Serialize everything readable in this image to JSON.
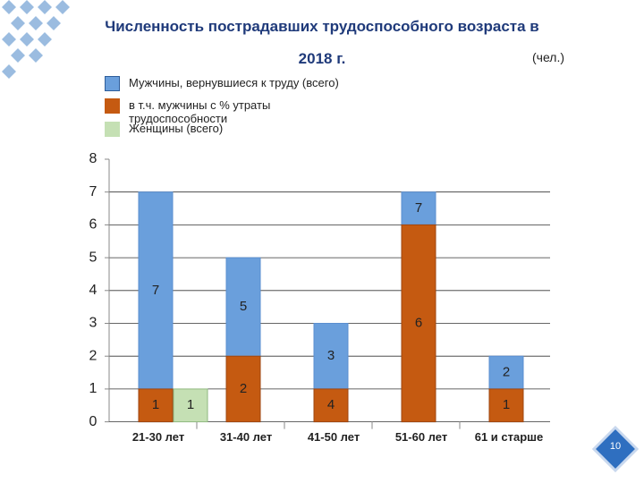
{
  "page_number": "10",
  "unit": "(чел.)",
  "chart_data": {
    "type": "bar",
    "title": "Численность пострадавших трудоспособного возраста в 2018 г.",
    "categories": [
      "21-30 лет",
      "31-40 лет",
      "41-50 лет",
      "51-60 лет",
      "61 и старше"
    ],
    "series": [
      {
        "name": "Мужчины, вернувшиеся к труду (всего)",
        "color": "#6a9fdc",
        "values": [
          7,
          5,
          3,
          7,
          2
        ]
      },
      {
        "name": "в т.ч. мужчины с % утраты трудоспособности",
        "color": "#c55a11",
        "values": [
          1,
          2,
          1,
          6,
          1
        ],
        "value_labels": [
          "1",
          "2",
          null,
          "6",
          "1"
        ]
      },
      {
        "name": "Женщины (всего)",
        "color": "#c5e0b4",
        "values": [
          1,
          null,
          null,
          null,
          null
        ]
      }
    ],
    "annotations": [
      "4"
    ],
    "ylim": [
      0,
      8
    ],
    "yticks": [
      0,
      1,
      2,
      3,
      4,
      5,
      6,
      7,
      8
    ],
    "grid": true
  }
}
